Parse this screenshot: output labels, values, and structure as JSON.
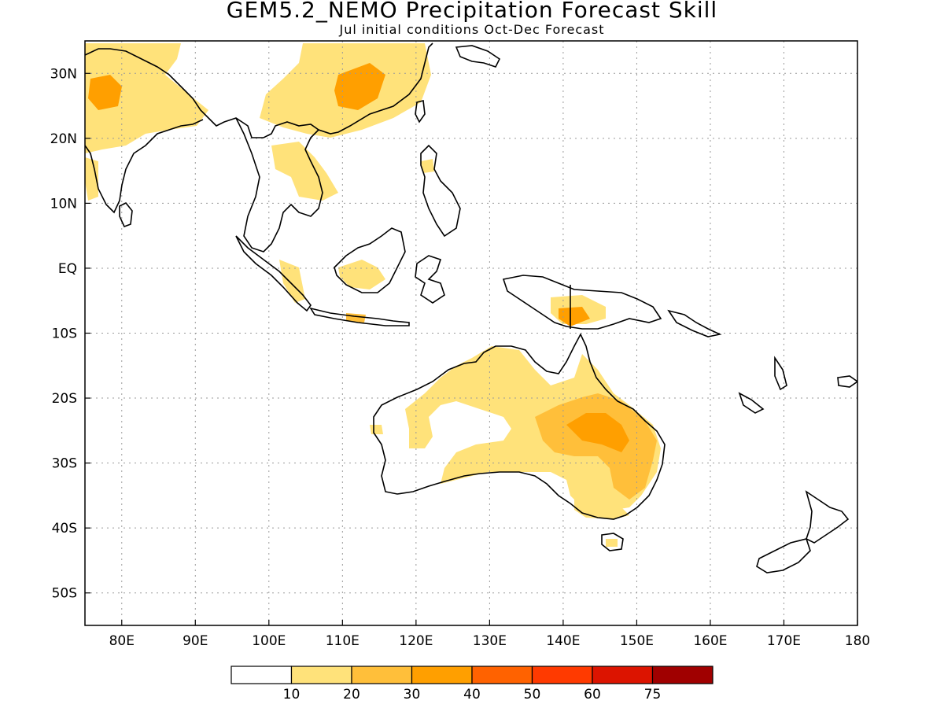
{
  "title": "GEM5.2_NEMO Precipitation Forecast Skill",
  "subtitle": "Jul initial conditions  Oct-Dec Forecast",
  "map": {
    "lon_range": [
      75,
      180
    ],
    "lat_range": [
      -55,
      35
    ],
    "lon_labels": [
      "80E",
      "90E",
      "100E",
      "110E",
      "120E",
      "130E",
      "140E",
      "150E",
      "160E",
      "170E",
      "180"
    ],
    "lat_labels": [
      "30N",
      "20N",
      "10N",
      "EQ",
      "10S",
      "20S",
      "30S",
      "40S",
      "50S"
    ],
    "grid": "dotted"
  },
  "colorbar": {
    "colors": [
      "#ffffff",
      "#ffe27a",
      "#ffbf3a",
      "#ff9f00",
      "#ff6200",
      "#ff3a00",
      "#dc1400",
      "#a00000"
    ],
    "labels": [
      "10",
      "20",
      "30",
      "40",
      "50",
      "60",
      "75"
    ]
  },
  "skill_regions": [
    {
      "name": "south-china",
      "level": 1
    },
    {
      "name": "south-china-core",
      "level": 3
    },
    {
      "name": "north-india-pakistan",
      "level": 1
    },
    {
      "name": "pakistan-core",
      "level": 3
    },
    {
      "name": "indochina",
      "level": 1
    },
    {
      "name": "borneo",
      "level": 1
    },
    {
      "name": "java",
      "level": 2
    },
    {
      "name": "new-guinea",
      "level": 1
    },
    {
      "name": "new-guinea-core",
      "level": 3
    },
    {
      "name": "north-australia",
      "level": 1
    },
    {
      "name": "east-australia",
      "level": 1
    },
    {
      "name": "east-australia-mid",
      "level": 2
    },
    {
      "name": "queensland-core",
      "level": 3
    },
    {
      "name": "southeast-australia",
      "level": 1
    }
  ]
}
